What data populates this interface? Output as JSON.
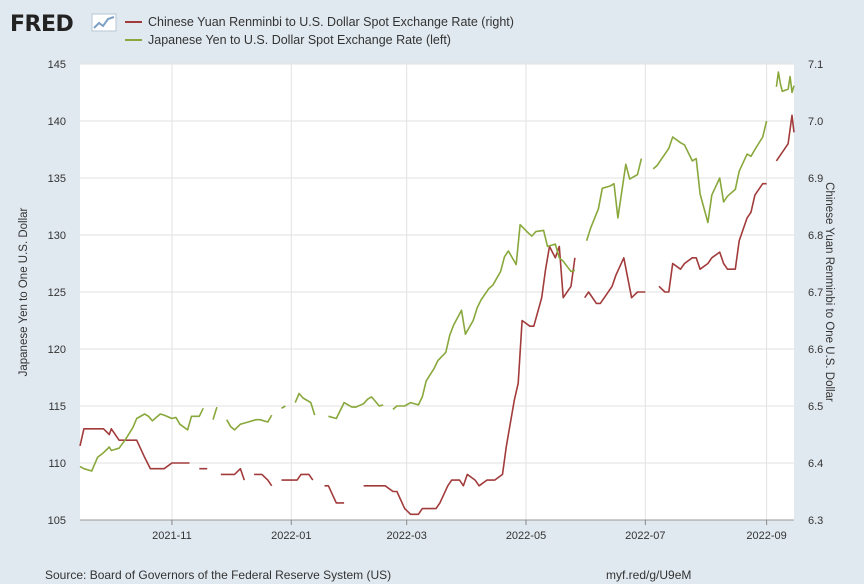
{
  "branding": {
    "logo_text": "FRED",
    "logo_icon": "fred-chart-icon"
  },
  "footer": {
    "source": "Source: Board of Governors of the Federal Reserve System (US)",
    "shortlink": "myf.red/g/U9eM"
  },
  "colors": {
    "cny": "#a23b3b",
    "jpy": "#89a83c",
    "plot_bg": "#ffffff",
    "page_bg": "#e1e9f0",
    "grid": "#e2e2e2"
  },
  "chart_data": {
    "type": "line",
    "title": "",
    "xlabel": "",
    "x_range": [
      "2021-09-15",
      "2022-09-15"
    ],
    "x_ticks": [
      "2021-11",
      "2022-01",
      "2022-03",
      "2022-05",
      "2022-07",
      "2022-09"
    ],
    "y_left": {
      "label": "Japanese Yen to One U.S. Dollar",
      "range": [
        105,
        145
      ],
      "ticks": [
        "105",
        "110",
        "115",
        "120",
        "125",
        "130",
        "135",
        "140",
        "145"
      ]
    },
    "y_right": {
      "label": "Chinese Yuan Renminbi to One U.S. Dollar",
      "range": [
        6.3,
        7.1
      ],
      "ticks": [
        "6.3",
        "6.4",
        "6.5",
        "6.6",
        "6.7",
        "6.8",
        "6.9",
        "7.0",
        "7.1"
      ]
    },
    "grid": true,
    "legend_position": "top",
    "series": [
      {
        "name": "Chinese Yuan Renminbi to U.S. Dollar Spot Exchange Rate (right)",
        "axis": "right",
        "color": "#a23b3b",
        "values": [
          [
            "2021-09-15",
            6.43
          ],
          [
            "2021-09-17",
            6.46
          ],
          [
            "2021-09-21",
            6.46
          ],
          [
            "2021-09-24",
            6.46
          ],
          [
            "2021-09-27",
            6.46
          ],
          [
            "2021-09-30",
            6.45
          ],
          [
            "2021-10-01",
            6.46
          ],
          [
            "2021-10-05",
            6.44
          ],
          [
            "2021-10-08",
            6.44
          ],
          [
            "2021-10-12",
            6.44
          ],
          [
            "2021-10-14",
            6.44
          ],
          [
            "2021-10-18",
            6.41
          ],
          [
            "2021-10-21",
            6.39
          ],
          [
            "2021-10-25",
            6.39
          ],
          [
            "2021-10-28",
            6.39
          ],
          [
            "2021-11-01",
            6.4
          ],
          [
            "2021-11-03",
            6.4
          ],
          [
            "2021-11-05",
            6.4
          ],
          [
            "2021-11-08",
            6.4
          ],
          [
            "2021-11-10",
            6.4
          ],
          [
            "2021-11-15",
            6.39
          ],
          [
            "2021-11-17",
            6.39
          ],
          [
            "2021-11-19",
            6.39
          ],
          [
            "2021-11-26",
            6.38
          ],
          [
            "2021-11-29",
            6.38
          ],
          [
            "2021-12-01",
            6.38
          ],
          [
            "2021-12-03",
            6.38
          ],
          [
            "2021-12-06",
            6.39
          ],
          [
            "2021-12-08",
            6.37
          ],
          [
            "2021-12-13",
            6.38
          ],
          [
            "2021-12-15",
            6.38
          ],
          [
            "2021-12-17",
            6.38
          ],
          [
            "2021-12-20",
            6.37
          ],
          [
            "2021-12-22",
            6.36
          ],
          [
            "2021-12-27",
            6.37
          ],
          [
            "2021-12-29",
            6.37
          ],
          [
            "2021-12-31",
            6.37
          ],
          [
            "2022-01-04",
            6.37
          ],
          [
            "2022-01-06",
            6.38
          ],
          [
            "2022-01-10",
            6.38
          ],
          [
            "2022-01-12",
            6.37
          ],
          [
            "2022-01-18",
            6.36
          ],
          [
            "2022-01-20",
            6.36
          ],
          [
            "2022-01-24",
            6.33
          ],
          [
            "2022-01-26",
            6.33
          ],
          [
            "2022-01-28",
            6.33
          ],
          [
            "2022-02-07",
            6.36
          ],
          [
            "2022-02-09",
            6.36
          ],
          [
            "2022-02-11",
            6.36
          ],
          [
            "2022-02-14",
            6.36
          ],
          [
            "2022-02-16",
            6.36
          ],
          [
            "2022-02-18",
            6.36
          ],
          [
            "2022-02-22",
            6.35
          ],
          [
            "2022-02-24",
            6.35
          ],
          [
            "2022-02-28",
            6.32
          ],
          [
            "2022-03-03",
            6.31
          ],
          [
            "2022-03-07",
            6.31
          ],
          [
            "2022-03-09",
            6.32
          ],
          [
            "2022-03-11",
            6.32
          ],
          [
            "2022-03-14",
            6.32
          ],
          [
            "2022-03-16",
            6.32
          ],
          [
            "2022-03-18",
            6.33
          ],
          [
            "2022-03-22",
            6.36
          ],
          [
            "2022-03-24",
            6.37
          ],
          [
            "2022-03-28",
            6.37
          ],
          [
            "2022-03-30",
            6.36
          ],
          [
            "2022-04-01",
            6.38
          ],
          [
            "2022-04-05",
            6.37
          ],
          [
            "2022-04-07",
            6.36
          ],
          [
            "2022-04-11",
            6.37
          ],
          [
            "2022-04-13",
            6.37
          ],
          [
            "2022-04-15",
            6.37
          ],
          [
            "2022-04-19",
            6.38
          ],
          [
            "2022-04-21",
            6.43
          ],
          [
            "2022-04-25",
            6.51
          ],
          [
            "2022-04-27",
            6.54
          ],
          [
            "2022-04-29",
            6.65
          ],
          [
            "2022-05-03",
            6.64
          ],
          [
            "2022-05-05",
            6.64
          ],
          [
            "2022-05-09",
            6.69
          ],
          [
            "2022-05-11",
            6.74
          ],
          [
            "2022-05-13",
            6.78
          ],
          [
            "2022-05-16",
            6.76
          ],
          [
            "2022-05-18",
            6.78
          ],
          [
            "2022-05-20",
            6.69
          ],
          [
            "2022-05-24",
            6.71
          ],
          [
            "2022-05-26",
            6.76
          ],
          [
            "2022-05-31",
            6.69
          ],
          [
            "2022-06-02",
            6.7
          ],
          [
            "2022-06-06",
            6.68
          ],
          [
            "2022-06-08",
            6.68
          ],
          [
            "2022-06-10",
            6.69
          ],
          [
            "2022-06-14",
            6.71
          ],
          [
            "2022-06-16",
            6.73
          ],
          [
            "2022-06-20",
            6.76
          ],
          [
            "2022-06-24",
            6.69
          ],
          [
            "2022-06-27",
            6.7
          ],
          [
            "2022-06-29",
            6.7
          ],
          [
            "2022-07-01",
            6.7
          ],
          [
            "2022-07-08",
            6.71
          ],
          [
            "2022-07-11",
            6.7
          ],
          [
            "2022-07-13",
            6.7
          ],
          [
            "2022-07-15",
            6.75
          ],
          [
            "2022-07-19",
            6.74
          ],
          [
            "2022-07-21",
            6.75
          ],
          [
            "2022-07-25",
            6.76
          ],
          [
            "2022-07-27",
            6.76
          ],
          [
            "2022-07-29",
            6.74
          ],
          [
            "2022-08-02",
            6.75
          ],
          [
            "2022-08-04",
            6.76
          ],
          [
            "2022-08-08",
            6.77
          ],
          [
            "2022-08-10",
            6.75
          ],
          [
            "2022-08-12",
            6.74
          ],
          [
            "2022-08-16",
            6.74
          ],
          [
            "2022-08-18",
            6.79
          ],
          [
            "2022-08-22",
            6.83
          ],
          [
            "2022-08-24",
            6.84
          ],
          [
            "2022-08-26",
            6.87
          ],
          [
            "2022-08-30",
            6.89
          ],
          [
            "2022-09-01",
            6.89
          ],
          [
            "2022-09-06",
            6.93
          ],
          [
            "2022-09-08",
            6.94
          ],
          [
            "2022-09-12",
            6.96
          ],
          [
            "2022-09-14",
            7.01
          ],
          [
            "2022-09-15",
            6.98
          ]
        ]
      },
      {
        "name": "Japanese Yen to U.S. Dollar Spot Exchange Rate (left)",
        "axis": "left",
        "color": "#89a83c",
        "values": [
          [
            "2021-09-15",
            109.7
          ],
          [
            "2021-09-17",
            109.5
          ],
          [
            "2021-09-21",
            109.3
          ],
          [
            "2021-09-24",
            110.5
          ],
          [
            "2021-09-27",
            110.9
          ],
          [
            "2021-09-30",
            111.4
          ],
          [
            "2021-10-01",
            111.1
          ],
          [
            "2021-10-05",
            111.3
          ],
          [
            "2021-10-08",
            112.0
          ],
          [
            "2021-10-12",
            113.1
          ],
          [
            "2021-10-14",
            113.9
          ],
          [
            "2021-10-18",
            114.3
          ],
          [
            "2021-10-20",
            114.1
          ],
          [
            "2021-10-22",
            113.7
          ],
          [
            "2021-10-26",
            114.3
          ],
          [
            "2021-10-28",
            114.2
          ],
          [
            "2021-11-01",
            113.9
          ],
          [
            "2021-11-03",
            114.0
          ],
          [
            "2021-11-05",
            113.4
          ],
          [
            "2021-11-09",
            112.9
          ],
          [
            "2021-11-11",
            114.1
          ],
          [
            "2021-11-15",
            114.1
          ],
          [
            "2021-11-17",
            114.8
          ],
          [
            "2021-11-22",
            113.8
          ],
          [
            "2021-11-24",
            114.9
          ],
          [
            "2021-11-29",
            113.8
          ],
          [
            "2021-12-01",
            113.2
          ],
          [
            "2021-12-03",
            112.9
          ],
          [
            "2021-12-06",
            113.4
          ],
          [
            "2021-12-08",
            113.5
          ],
          [
            "2021-12-10",
            113.6
          ],
          [
            "2021-12-14",
            113.8
          ],
          [
            "2021-12-16",
            113.8
          ],
          [
            "2021-12-20",
            113.6
          ],
          [
            "2021-12-22",
            114.2
          ],
          [
            "2021-12-27",
            114.8
          ],
          [
            "2021-12-29",
            115.0
          ],
          [
            "2022-01-03",
            115.3
          ],
          [
            "2022-01-05",
            116.1
          ],
          [
            "2022-01-07",
            115.7
          ],
          [
            "2022-01-11",
            115.3
          ],
          [
            "2022-01-13",
            114.2
          ],
          [
            "2022-01-20",
            114.1
          ],
          [
            "2022-01-24",
            113.9
          ],
          [
            "2022-01-26",
            114.6
          ],
          [
            "2022-01-28",
            115.3
          ],
          [
            "2022-02-01",
            114.9
          ],
          [
            "2022-02-03",
            114.9
          ],
          [
            "2022-02-07",
            115.2
          ],
          [
            "2022-02-09",
            115.6
          ],
          [
            "2022-02-11",
            115.8
          ],
          [
            "2022-02-15",
            115.0
          ],
          [
            "2022-02-17",
            115.1
          ],
          [
            "2022-02-22",
            114.7
          ],
          [
            "2022-02-24",
            115.0
          ],
          [
            "2022-02-28",
            115.0
          ],
          [
            "2022-03-03",
            115.3
          ],
          [
            "2022-03-07",
            115.1
          ],
          [
            "2022-03-09",
            115.8
          ],
          [
            "2022-03-11",
            117.2
          ],
          [
            "2022-03-15",
            118.3
          ],
          [
            "2022-03-17",
            119.0
          ],
          [
            "2022-03-21",
            119.7
          ],
          [
            "2022-03-23",
            121.2
          ],
          [
            "2022-03-25",
            122.1
          ],
          [
            "2022-03-29",
            123.4
          ],
          [
            "2022-03-31",
            121.3
          ],
          [
            "2022-04-04",
            122.5
          ],
          [
            "2022-04-06",
            123.6
          ],
          [
            "2022-04-08",
            124.3
          ],
          [
            "2022-04-12",
            125.3
          ],
          [
            "2022-04-14",
            125.6
          ],
          [
            "2022-04-18",
            126.8
          ],
          [
            "2022-04-20",
            128.1
          ],
          [
            "2022-04-22",
            128.6
          ],
          [
            "2022-04-26",
            127.4
          ],
          [
            "2022-04-28",
            130.9
          ],
          [
            "2022-05-02",
            130.2
          ],
          [
            "2022-05-04",
            129.9
          ],
          [
            "2022-05-06",
            130.3
          ],
          [
            "2022-05-10",
            130.4
          ],
          [
            "2022-05-12",
            129.0
          ],
          [
            "2022-05-16",
            129.2
          ],
          [
            "2022-05-18",
            128.0
          ],
          [
            "2022-05-20",
            127.7
          ],
          [
            "2022-05-24",
            126.8
          ],
          [
            "2022-05-26",
            126.9
          ],
          [
            "2022-06-01",
            129.5
          ],
          [
            "2022-06-03",
            130.6
          ],
          [
            "2022-06-07",
            132.3
          ],
          [
            "2022-06-09",
            134.1
          ],
          [
            "2022-06-13",
            134.3
          ],
          [
            "2022-06-15",
            134.5
          ],
          [
            "2022-06-17",
            131.5
          ],
          [
            "2022-06-21",
            136.2
          ],
          [
            "2022-06-23",
            134.9
          ],
          [
            "2022-06-27",
            135.3
          ],
          [
            "2022-06-29",
            136.7
          ],
          [
            "2022-07-05",
            135.8
          ],
          [
            "2022-07-07",
            136.1
          ],
          [
            "2022-07-11",
            137.1
          ],
          [
            "2022-07-13",
            137.6
          ],
          [
            "2022-07-15",
            138.6
          ],
          [
            "2022-07-19",
            138.1
          ],
          [
            "2022-07-21",
            137.9
          ],
          [
            "2022-07-25",
            136.5
          ],
          [
            "2022-07-27",
            136.7
          ],
          [
            "2022-07-29",
            133.6
          ],
          [
            "2022-08-02",
            131.1
          ],
          [
            "2022-08-04",
            133.5
          ],
          [
            "2022-08-08",
            135.0
          ],
          [
            "2022-08-10",
            132.9
          ],
          [
            "2022-08-12",
            133.4
          ],
          [
            "2022-08-16",
            134.0
          ],
          [
            "2022-08-18",
            135.6
          ],
          [
            "2022-08-22",
            137.1
          ],
          [
            "2022-08-24",
            136.9
          ],
          [
            "2022-08-26",
            137.5
          ],
          [
            "2022-08-30",
            138.6
          ],
          [
            "2022-09-01",
            140.0
          ],
          [
            "2022-09-06",
            143.0
          ],
          [
            "2022-09-07",
            144.3
          ],
          [
            "2022-09-08",
            143.3
          ],
          [
            "2022-09-09",
            142.6
          ],
          [
            "2022-09-12",
            142.8
          ],
          [
            "2022-09-13",
            143.9
          ],
          [
            "2022-09-14",
            142.5
          ],
          [
            "2022-09-15",
            143.1
          ]
        ]
      }
    ]
  }
}
